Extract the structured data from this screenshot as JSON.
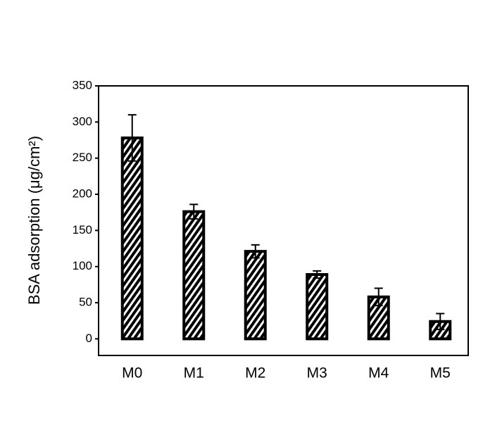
{
  "chart_data": {
    "type": "bar",
    "y_label": "BSA adsorption (μg/cm²)",
    "categories": [
      "M0",
      "M1",
      "M2",
      "M3",
      "M4",
      "M5"
    ],
    "values": [
      278,
      176,
      121,
      89,
      58,
      24
    ],
    "errors": [
      32,
      10,
      9,
      5,
      12,
      11
    ],
    "color": "#000000",
    "ylim": [
      -23,
      350
    ],
    "yticks": [
      0,
      50,
      100,
      150,
      200,
      250,
      300,
      350
    ],
    "grid": false
  }
}
